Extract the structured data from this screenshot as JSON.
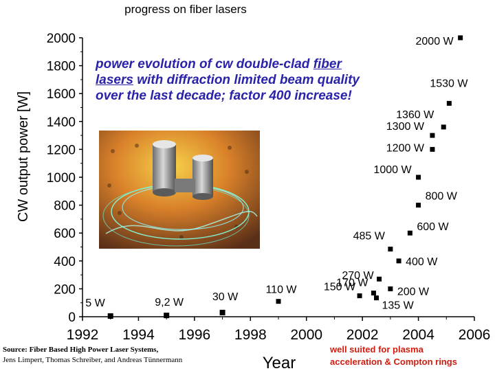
{
  "slide_title": "progress on fiber lasers",
  "overlay": {
    "pre": "power evolution of cw double-clad ",
    "underlined": "fiber lasers",
    "post": " with diffraction limited beam quality over the last decade; factor 400 increase!"
  },
  "source_note": {
    "line1": "Source: Fiber Based High Power Laser Systems,",
    "line2": "Jens Limpert, Thomas Schreiber, and Andreas Tünnermann"
  },
  "application_note": {
    "line1": "well suited for plasma",
    "line2": "acceleration & Compton rings"
  },
  "chart_data": {
    "type": "scatter",
    "title": "",
    "xlabel": "Year",
    "ylabel": "CW output power [W]",
    "xlim": [
      1992,
      2006
    ],
    "ylim": [
      0,
      2000
    ],
    "x_ticks": [
      "1992",
      "1994",
      "1996",
      "1998",
      "2000",
      "2002",
      "2004",
      "2006"
    ],
    "y_ticks": [
      "0",
      "200",
      "400",
      "600",
      "800",
      "1000",
      "1200",
      "1400",
      "1600",
      "1800",
      "2000"
    ],
    "grid": false,
    "points": [
      {
        "x": 1993.0,
        "y": 5,
        "label": "5 W"
      },
      {
        "x": 1995.0,
        "y": 9.2,
        "label": "9,2 W"
      },
      {
        "x": 1997.0,
        "y": 30,
        "label": "30 W"
      },
      {
        "x": 1999.0,
        "y": 110,
        "label": "110 W"
      },
      {
        "x": 2001.9,
        "y": 150,
        "label": "150 W"
      },
      {
        "x": 2002.4,
        "y": 170,
        "label": "170 W"
      },
      {
        "x": 2002.5,
        "y": 135,
        "label": "135 W"
      },
      {
        "x": 2003.0,
        "y": 200,
        "label": "200 W"
      },
      {
        "x": 2002.6,
        "y": 270,
        "label": "270 W"
      },
      {
        "x": 2003.3,
        "y": 400,
        "label": "400 W"
      },
      {
        "x": 2003.0,
        "y": 485,
        "label": "485 W"
      },
      {
        "x": 2003.7,
        "y": 600,
        "label": "600 W"
      },
      {
        "x": 2004.0,
        "y": 800,
        "label": "800 W"
      },
      {
        "x": 2004.0,
        "y": 1000,
        "label": "1000 W"
      },
      {
        "x": 2004.5,
        "y": 1200,
        "label": "1200 W"
      },
      {
        "x": 2004.5,
        "y": 1300,
        "label": "1300 W"
      },
      {
        "x": 2004.9,
        "y": 1360,
        "label": "1360 W"
      },
      {
        "x": 2005.1,
        "y": 1530,
        "label": "1530 W"
      },
      {
        "x": 2005.5,
        "y": 2000,
        "label": "2000 W"
      }
    ]
  },
  "colors": {
    "overlay_text": "#2a22a8",
    "application_text": "#d21b0e",
    "marker": "#000000"
  }
}
